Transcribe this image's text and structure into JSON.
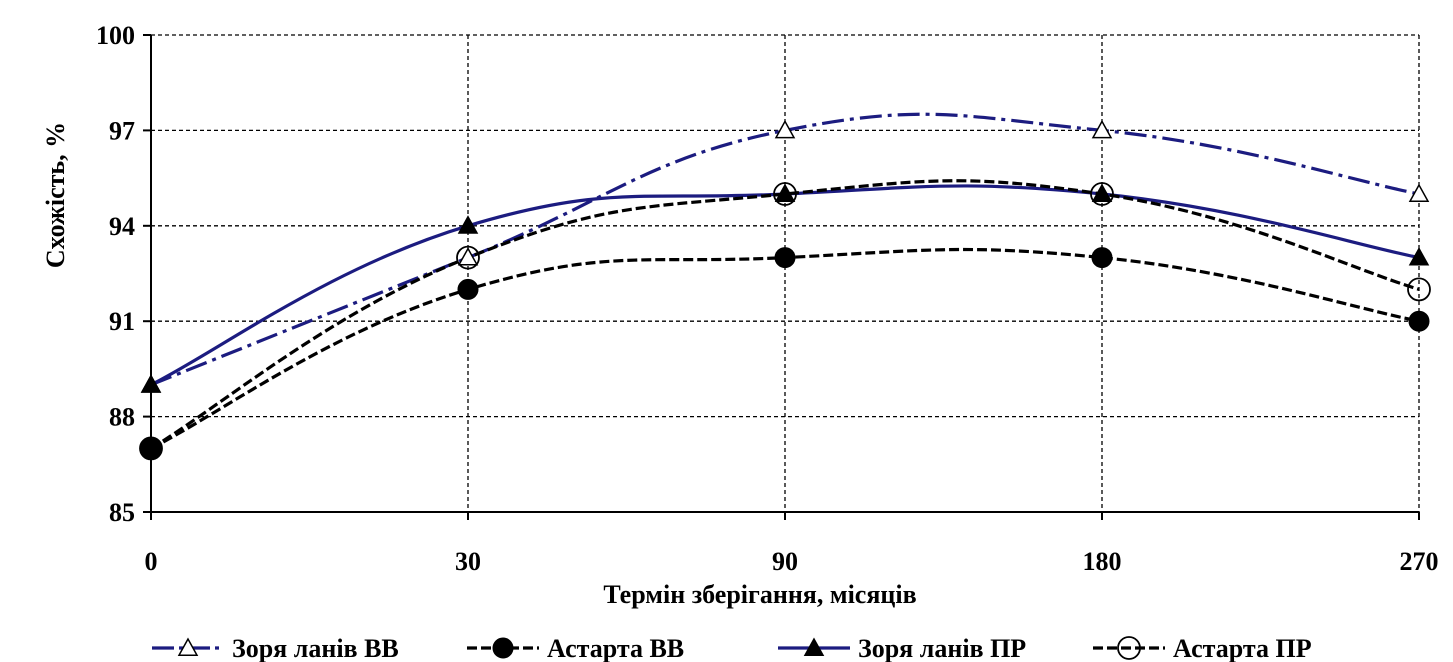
{
  "chart_data": {
    "type": "line",
    "title": "",
    "xlabel": "Термін зберігання, місяців",
    "ylabel": "Схожість, %",
    "categories": [
      "0",
      "30",
      "90",
      "180",
      "270"
    ],
    "yticks": [
      85,
      88,
      91,
      94,
      97,
      100
    ],
    "ylim": [
      85,
      100
    ],
    "grid": true,
    "legend_position": "bottom",
    "series": [
      {
        "name": "Зоря ланів ВВ",
        "values": [
          89,
          93,
          97,
          97,
          95
        ],
        "color": "#1c1c80",
        "marker": "triangle-open",
        "line": "dash-dot"
      },
      {
        "name": "Астарта ВВ",
        "values": [
          87,
          92,
          93,
          93,
          91
        ],
        "color": "#000000",
        "marker": "circle-filled",
        "line": "dashed"
      },
      {
        "name": "Зоря ланів ПР",
        "values": [
          89,
          94,
          95,
          95,
          93
        ],
        "color": "#1c1c80",
        "marker": "triangle-filled",
        "line": "solid"
      },
      {
        "name": "Астарта ПР",
        "values": [
          87,
          93,
          95,
          95,
          92
        ],
        "color": "#000000",
        "marker": "circle-open",
        "line": "dashed"
      }
    ]
  }
}
